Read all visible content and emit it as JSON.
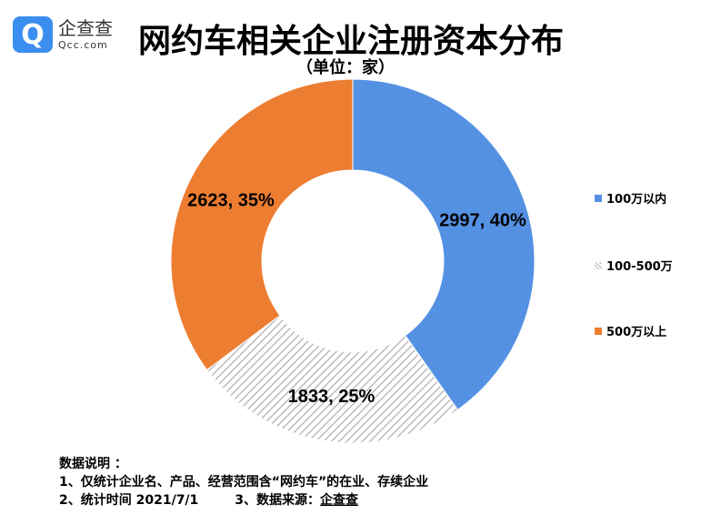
{
  "logo": {
    "cn": "企查查",
    "en": "Qcc.com"
  },
  "title": "网约车相关企业注册资本分布",
  "subtitle": "（单位：家）",
  "chart_data": {
    "type": "pie",
    "donut": true,
    "title": "网约车相关企业注册资本分布",
    "unit": "家",
    "categories": [
      "100万以内",
      "100-500万",
      "500万以上"
    ],
    "values": [
      2997,
      1833,
      2623
    ],
    "percents": [
      40,
      25,
      35
    ],
    "labels": [
      "2997, 40%",
      "1833, 25%",
      "2623, 35%"
    ],
    "colors": [
      "#5591e3",
      "hatched-gray",
      "#ed7d31"
    ],
    "legend_position": "right"
  },
  "notes": {
    "heading": "数据说明 ：",
    "line1": "1、仅统计企业名、产品、经营范围含“网约车”的在业、存续企业",
    "line2a": "2、统计时间  2021/7/1",
    "line2b": "3、数据来源：",
    "source": "企查查"
  }
}
